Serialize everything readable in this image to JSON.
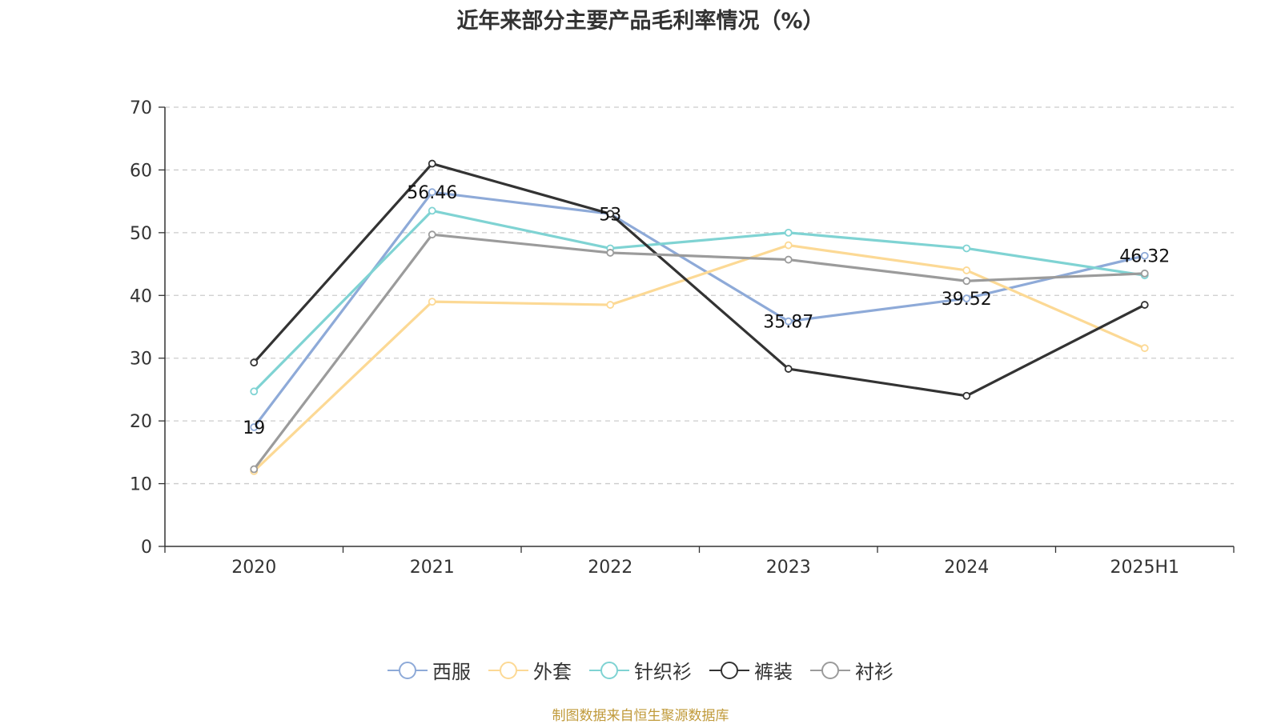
{
  "title": "近年来部分主要产品毛利率情况（%）",
  "source": "制图数据来自恒生聚源数据库",
  "chart_data": {
    "type": "line",
    "title": "近年来部分主要产品毛利率情况（%）",
    "categories": [
      "2020",
      "2021",
      "2022",
      "2023",
      "2024",
      "2025H1"
    ],
    "ylim": [
      0,
      70
    ],
    "yticks": [
      0,
      10,
      20,
      30,
      40,
      50,
      60,
      70
    ],
    "grid": true,
    "legend_position": "bottom",
    "series": [
      {
        "name": "西服",
        "color": "#8eaad8",
        "values": [
          19,
          56.46,
          53,
          35.87,
          39.52,
          46.32
        ],
        "labels": [
          "19",
          "56.46",
          "53",
          "35.87",
          "39.52",
          "46.32"
        ]
      },
      {
        "name": "外套",
        "color": "#fcd995",
        "values": [
          12,
          39,
          38.5,
          48,
          44,
          31.6
        ]
      },
      {
        "name": "针织衫",
        "color": "#7fd3d3",
        "values": [
          24.7,
          53.5,
          47.5,
          50,
          47.5,
          43.2
        ]
      },
      {
        "name": "裤装",
        "color": "#333333",
        "values": [
          29.3,
          61,
          53,
          28.3,
          24,
          38.5
        ]
      },
      {
        "name": "衬衫",
        "color": "#9b9b9b",
        "values": [
          12.3,
          49.7,
          46.8,
          45.7,
          42.3,
          43.5
        ]
      }
    ]
  }
}
